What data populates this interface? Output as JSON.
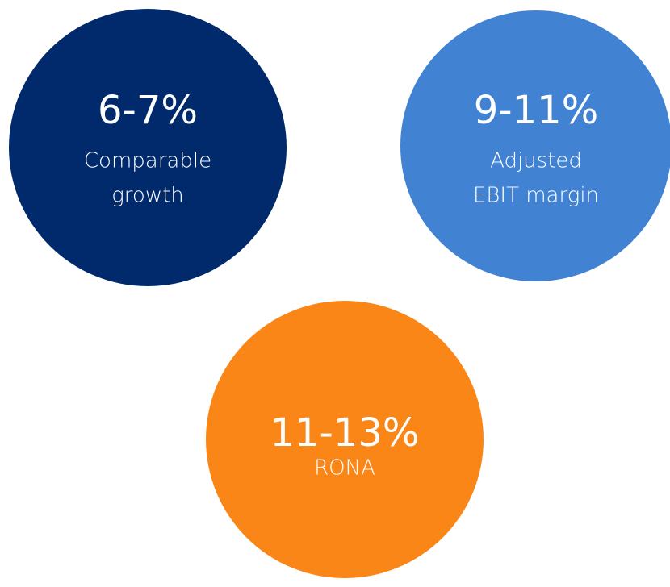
{
  "items": [
    {
      "value": "6-7%",
      "label": [
        "Comparable",
        "growth"
      ],
      "color": "#012a6c"
    },
    {
      "value": "9-11%",
      "label": [
        "Adjusted",
        "EBIT margin"
      ],
      "color": "#4182d3"
    },
    {
      "value": "11-13%",
      "label": [
        "RONA"
      ],
      "color": "#fb8618"
    }
  ]
}
